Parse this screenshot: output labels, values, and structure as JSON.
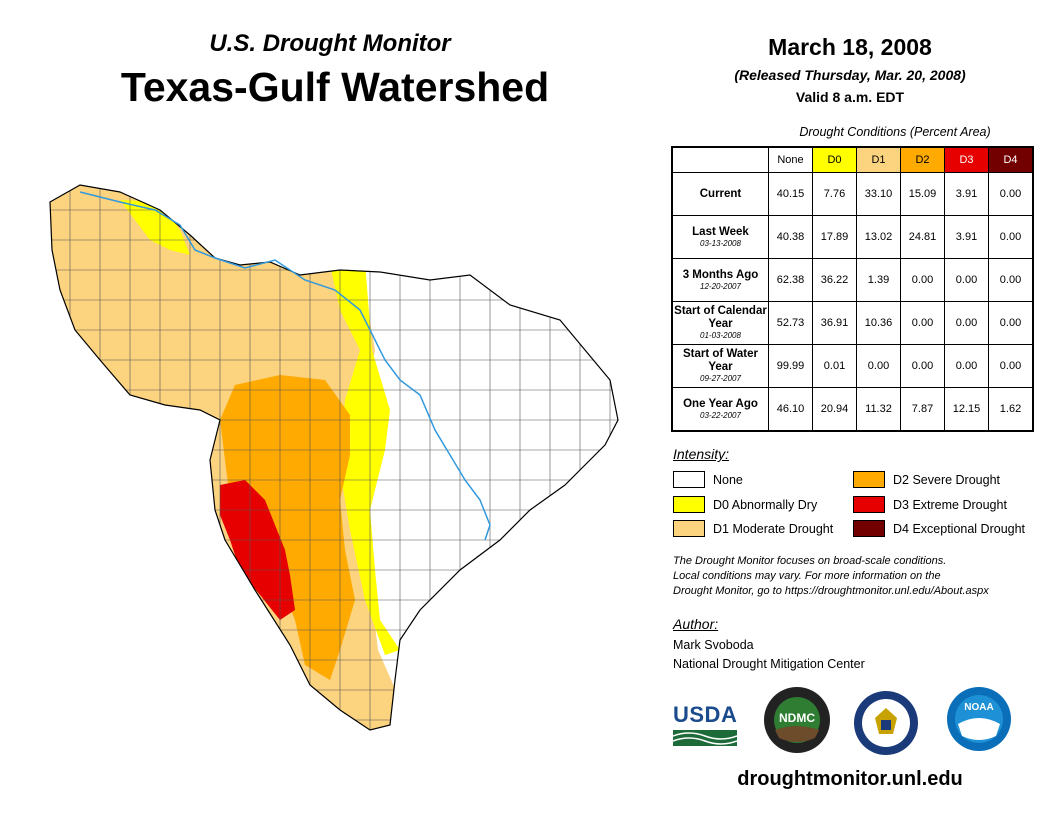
{
  "header": {
    "subtitle": "U.S. Drought Monitor",
    "title": "Texas-Gulf Watershed",
    "date": "March 18, 2008",
    "released": "(Released Thursday, Mar. 20, 2008)",
    "valid": "Valid 8 a.m. EDT"
  },
  "table": {
    "caption": "Drought Conditions (Percent Area)",
    "columns": [
      "None",
      "D0",
      "D1",
      "D2",
      "D3",
      "D4"
    ],
    "rows": [
      {
        "label": "Current",
        "date": "",
        "values": [
          "40.15",
          "7.76",
          "33.10",
          "15.09",
          "3.91",
          "0.00"
        ]
      },
      {
        "label": "Last Week",
        "date": "03-13-2008",
        "values": [
          "40.38",
          "17.89",
          "13.02",
          "24.81",
          "3.91",
          "0.00"
        ]
      },
      {
        "label": "3 Months Ago",
        "date": "12-20-2007",
        "values": [
          "62.38",
          "36.22",
          "1.39",
          "0.00",
          "0.00",
          "0.00"
        ]
      },
      {
        "label": "Start of Calendar Year",
        "date": "01-03-2008",
        "values": [
          "52.73",
          "36.91",
          "10.36",
          "0.00",
          "0.00",
          "0.00"
        ]
      },
      {
        "label": "Start of Water Year",
        "date": "09-27-2007",
        "values": [
          "99.99",
          "0.01",
          "0.00",
          "0.00",
          "0.00",
          "0.00"
        ]
      },
      {
        "label": "One Year Ago",
        "date": "03-22-2007",
        "values": [
          "46.10",
          "20.94",
          "11.32",
          "7.87",
          "12.15",
          "1.62"
        ]
      }
    ]
  },
  "colors": {
    "none": "#ffffff",
    "d0": "#ffff00",
    "d1": "#fcd37f",
    "d2": "#ffaa00",
    "d3": "#e60000",
    "d4": "#730000",
    "river": "#3399dd"
  },
  "legend": {
    "title": "Intensity:",
    "items": [
      {
        "label": "None",
        "color_key": "none"
      },
      {
        "label": "D0 Abnormally Dry",
        "color_key": "d0"
      },
      {
        "label": "D1 Moderate Drought",
        "color_key": "d1"
      },
      {
        "label": "D2 Severe Drought",
        "color_key": "d2"
      },
      {
        "label": "D3 Extreme Drought",
        "color_key": "d3"
      },
      {
        "label": "D4 Exceptional Drought",
        "color_key": "d4"
      }
    ]
  },
  "note": {
    "line1": "The Drought Monitor focuses on broad-scale conditions.",
    "line2": "Local conditions may vary. For more information on the",
    "line3": "Drought Monitor, go to https://droughtmonitor.unl.edu/About.aspx"
  },
  "author": {
    "title": "Author:",
    "name": "Mark Svoboda",
    "org": "National Drought Mitigation Center"
  },
  "logos": {
    "usda": "USDA",
    "ndmc": "NDMC",
    "noaa": "NOAA"
  },
  "url": "droughtmonitor.unl.edu"
}
